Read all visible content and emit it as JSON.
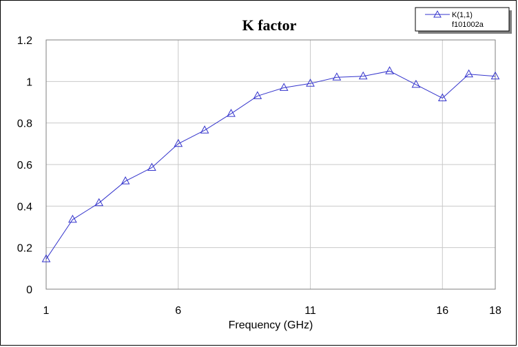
{
  "chart_data": {
    "type": "line",
    "title": "K factor",
    "xlabel": "Frequency (GHz)",
    "ylabel": "",
    "xlim": [
      1,
      18
    ],
    "ylim": [
      0,
      1.2
    ],
    "x_ticks": [
      "1",
      "6",
      "11",
      "16",
      "18"
    ],
    "y_ticks": [
      "0",
      "0.2",
      "0.4",
      "0.6",
      "0.8",
      "1",
      "1.2"
    ],
    "grid": true,
    "legend_position": "top-right",
    "legend": {
      "entry": "K(1,1)",
      "source": "f101002a"
    },
    "series": [
      {
        "name": "K(1,1)",
        "color": "#3333cc",
        "marker": "triangle",
        "x": [
          1,
          2,
          3,
          4,
          5,
          6,
          7,
          8,
          9,
          10,
          11,
          12,
          13,
          14,
          15,
          16,
          17,
          18
        ],
        "values": [
          0.145,
          0.335,
          0.415,
          0.52,
          0.585,
          0.7,
          0.765,
          0.845,
          0.93,
          0.97,
          0.99,
          1.02,
          1.025,
          1.05,
          0.985,
          0.92,
          1.035,
          1.025
        ]
      }
    ]
  }
}
